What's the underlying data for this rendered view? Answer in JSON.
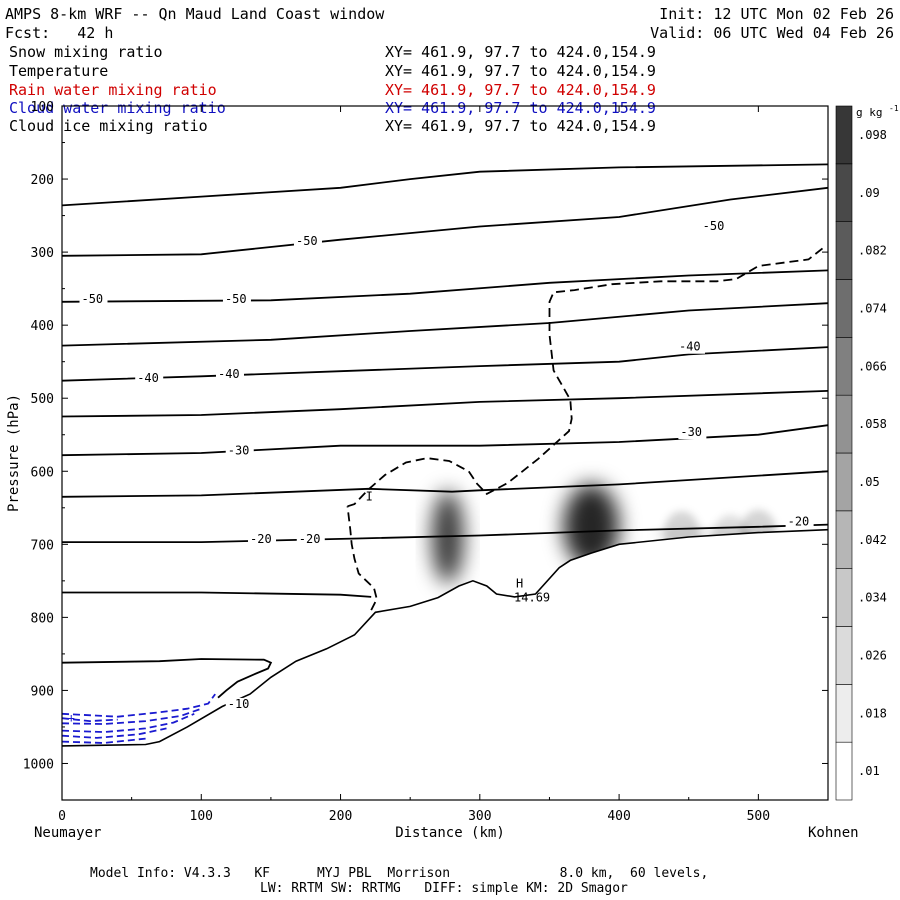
{
  "header": {
    "title": "AMPS 8-km WRF -- Qn Maud Land Coast window",
    "init": "Init: 12 UTC Mon 02 Feb 26",
    "fcst": "Fcst:   42 h",
    "valid": "Valid: 06 UTC Wed 04 Feb 26"
  },
  "fields": [
    {
      "name": "Snow mixing ratio",
      "xy": "XY= 461.9, 97.7 to 424.0,154.9",
      "color": "#000000"
    },
    {
      "name": "Temperature",
      "xy": "XY= 461.9, 97.7 to 424.0,154.9",
      "color": "#000000"
    },
    {
      "name": "Rain water mixing ratio",
      "xy": "XY= 461.9, 97.7 to 424.0,154.9",
      "color": "#d00000"
    },
    {
      "name": "Cloud water mixing ratio",
      "xy": "XY= 461.9, 97.7 to 424.0,154.9",
      "color": "#1010c0"
    },
    {
      "name": "Cloud ice mixing ratio",
      "xy": "XY= 461.9, 97.7 to 424.0,154.9",
      "color": "#000000"
    }
  ],
  "footer": {
    "line1": "Model Info: V4.3.3   KF      MYJ PBL  Morrison              8.0 km,  60 levels,",
    "line2": "LW: RRTM SW: RRTMG   DIFF: simple KM: 2D Smagor"
  },
  "chart_data": {
    "type": "cross-section contour",
    "xlabel": "Distance (km)",
    "ylabel": "Pressure (hPa)",
    "xlim": [
      0,
      550
    ],
    "ylim": [
      1050,
      100
    ],
    "x_ticks": [
      0,
      100,
      200,
      300,
      400,
      500
    ],
    "y_ticks": [
      100,
      200,
      300,
      400,
      500,
      600,
      700,
      800,
      900,
      1000
    ],
    "left_endpoint": "Neumayer",
    "right_endpoint": "Kohnen",
    "colorbar": {
      "unit": "g kg",
      "unit_exp": "-1",
      "ticks": [
        ".01",
        ".018",
        ".026",
        ".034",
        ".042",
        ".05",
        ".058",
        ".066",
        ".074",
        ".082",
        ".09",
        ".098"
      ],
      "levels": [
        0.006,
        0.014,
        0.022,
        0.03,
        0.038,
        0.046,
        0.054,
        0.062,
        0.07,
        0.078,
        0.086,
        0.094,
        0.102
      ]
    },
    "temperature_labels": [
      {
        "x": 168,
        "p": 290,
        "text": "-50"
      },
      {
        "x": 14,
        "p": 370,
        "text": "-50"
      },
      {
        "x": 117,
        "p": 370,
        "text": "-50"
      },
      {
        "x": 460,
        "p": 270,
        "text": "-50"
      },
      {
        "x": 443,
        "p": 435,
        "text": "-40"
      },
      {
        "x": 54,
        "p": 478,
        "text": "-40"
      },
      {
        "x": 112,
        "p": 472,
        "text": "-40"
      },
      {
        "x": 119,
        "p": 577,
        "text": "-30"
      },
      {
        "x": 444,
        "p": 552,
        "text": "-30"
      },
      {
        "x": 135,
        "p": 698,
        "text": "-20"
      },
      {
        "x": 170,
        "p": 698,
        "text": "-20"
      },
      {
        "x": 521,
        "p": 674,
        "text": "-20"
      },
      {
        "x": 119,
        "p": 924,
        "text": "-10"
      }
    ],
    "temperature_isotherms": [
      [
        [
          0,
          236
        ],
        [
          100,
          224
        ],
        [
          200,
          212
        ],
        [
          250,
          200
        ],
        [
          300,
          190
        ],
        [
          400,
          184
        ],
        [
          550,
          180
        ]
      ],
      [
        [
          0,
          305
        ],
        [
          100,
          303
        ],
        [
          200,
          283
        ],
        [
          300,
          265
        ],
        [
          400,
          252
        ],
        [
          480,
          228
        ],
        [
          550,
          212
        ]
      ],
      [
        [
          0,
          368
        ],
        [
          150,
          366
        ],
        [
          250,
          357
        ],
        [
          350,
          342
        ],
        [
          450,
          332
        ],
        [
          550,
          325
        ]
      ],
      [
        [
          0,
          428
        ],
        [
          150,
          420
        ],
        [
          250,
          408
        ],
        [
          350,
          397
        ],
        [
          450,
          380
        ],
        [
          550,
          370
        ]
      ],
      [
        [
          0,
          476
        ],
        [
          100,
          470
        ],
        [
          200,
          463
        ],
        [
          300,
          456
        ],
        [
          400,
          450
        ],
        [
          450,
          440
        ],
        [
          550,
          430
        ]
      ],
      [
        [
          0,
          525
        ],
        [
          100,
          523
        ],
        [
          200,
          515
        ],
        [
          300,
          505
        ],
        [
          400,
          500
        ],
        [
          550,
          490
        ]
      ],
      [
        [
          0,
          578
        ],
        [
          100,
          575
        ],
        [
          200,
          565
        ],
        [
          300,
          565
        ],
        [
          400,
          560
        ],
        [
          500,
          550
        ],
        [
          550,
          537
        ]
      ],
      [
        [
          0,
          635
        ],
        [
          100,
          633
        ],
        [
          220,
          624
        ],
        [
          280,
          628
        ],
        [
          300,
          626
        ],
        [
          400,
          618
        ],
        [
          550,
          600
        ]
      ],
      [
        [
          0,
          697
        ],
        [
          100,
          697
        ],
        [
          212,
          692
        ],
        [
          300,
          688
        ],
        [
          400,
          681
        ],
        [
          500,
          676
        ],
        [
          550,
          673
        ]
      ],
      [
        [
          0,
          766
        ],
        [
          100,
          766
        ],
        [
          200,
          769
        ],
        [
          222,
          772
        ]
      ],
      [
        [
          0,
          862
        ],
        [
          70,
          860
        ],
        [
          100,
          857
        ],
        [
          145,
          858
        ],
        [
          150,
          862
        ],
        [
          148,
          870
        ],
        [
          138,
          878
        ],
        [
          126,
          888
        ],
        [
          118,
          900
        ],
        [
          112,
          910
        ]
      ]
    ],
    "terrain_surface": [
      [
        0,
        976
      ],
      [
        60,
        974
      ],
      [
        70,
        970
      ],
      [
        90,
        950
      ],
      [
        115,
        922
      ],
      [
        135,
        905
      ],
      [
        150,
        882
      ],
      [
        168,
        860
      ],
      [
        190,
        843
      ],
      [
        210,
        824
      ],
      [
        225,
        793
      ],
      [
        250,
        785
      ],
      [
        270,
        773
      ],
      [
        285,
        757
      ],
      [
        295,
        750
      ],
      [
        305,
        757
      ],
      [
        312,
        768
      ],
      [
        325,
        772
      ],
      [
        340,
        768
      ],
      [
        357,
        732
      ],
      [
        365,
        722
      ],
      [
        380,
        712
      ],
      [
        400,
        700
      ],
      [
        450,
        690
      ],
      [
        500,
        684
      ],
      [
        550,
        680
      ]
    ],
    "snow_maxima": [
      {
        "x": 277,
        "p": 690,
        "value": 0.09
      },
      {
        "x": 380,
        "p": 675,
        "value": 0.1
      },
      {
        "x": 445,
        "p": 685,
        "value": 0.02
      },
      {
        "x": 480,
        "p": 690,
        "value": 0.015
      },
      {
        "x": 500,
        "p": 683,
        "value": 0.02
      }
    ],
    "cloud_ice_contour": [
      [
        205,
        648
      ],
      [
        210,
        645
      ],
      [
        220,
        625
      ],
      [
        232,
        605
      ],
      [
        247,
        588
      ],
      [
        262,
        582
      ],
      [
        278,
        586
      ],
      [
        292,
        600
      ],
      [
        298,
        617
      ],
      [
        302,
        625
      ],
      [
        305,
        631
      ],
      [
        320,
        616
      ],
      [
        342,
        583
      ],
      [
        364,
        545
      ],
      [
        366,
        528
      ],
      [
        365,
        502
      ],
      [
        353,
        462
      ],
      [
        350,
        413
      ],
      [
        350,
        368
      ],
      [
        353,
        355
      ],
      [
        368,
        352
      ],
      [
        395,
        344
      ],
      [
        430,
        340
      ],
      [
        470,
        340
      ],
      [
        484,
        337
      ],
      [
        500,
        319
      ],
      [
        536,
        310
      ],
      [
        548,
        292
      ]
    ],
    "cloud_ice_label": {
      "x": 218,
      "p": 640,
      "text": "I"
    },
    "high_label": {
      "x": 326,
      "p": 759,
      "text": "H",
      "value_text": "14.69"
    },
    "cloud_water_region": {
      "x_range": [
        0,
        110
      ],
      "p_range": [
        905,
        975
      ]
    }
  }
}
